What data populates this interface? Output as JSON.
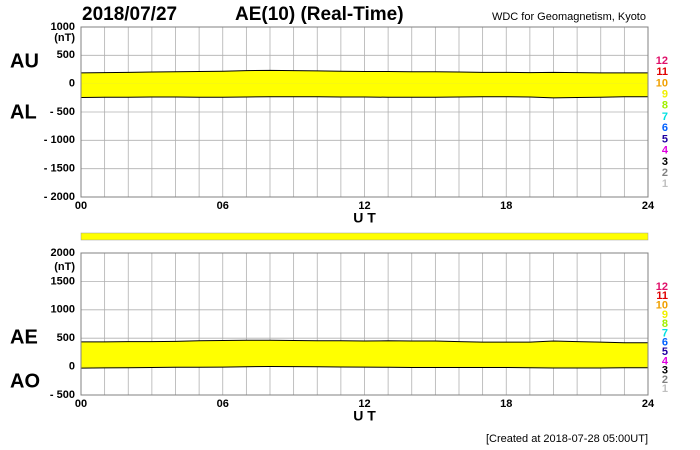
{
  "header": {
    "date": "2018/07/27",
    "title": "AE(10) (Real-Time)",
    "source": "WDC for Geomagnetism, Kyoto",
    "footer": "[Created at 2018-07-28 05:00UT]"
  },
  "chart_data": [
    {
      "type": "area",
      "unit": "(nT)",
      "xlabel": "U T",
      "x": [
        0,
        1,
        2,
        3,
        4,
        5,
        6,
        7,
        8,
        9,
        10,
        11,
        12,
        13,
        14,
        15,
        16,
        17,
        18,
        19,
        20,
        21,
        22,
        23,
        24
      ],
      "xlim": [
        0,
        24
      ],
      "xticks": [
        {
          "value": 0,
          "label": "00"
        },
        {
          "value": 6,
          "label": "06"
        },
        12,
        18,
        24
      ],
      "x_minor_ticks": [
        0,
        1,
        2,
        3,
        4,
        5,
        6,
        7,
        8,
        9,
        10,
        11,
        12,
        13,
        14,
        15,
        16,
        17,
        18,
        19,
        20,
        21,
        22,
        23,
        24
      ],
      "ylim": [
        -2000,
        1000
      ],
      "yticks": [
        {
          "value": -2000,
          "label": "- 2000"
        },
        {
          "value": -1500,
          "label": "- 1500"
        },
        {
          "value": -1000,
          "label": "- 1000"
        },
        {
          "value": -500,
          "label": "- 500"
        },
        0,
        500,
        1000
      ],
      "grid": true,
      "fill_color": "#ffff00",
      "line_color": "#000000",
      "series": [
        {
          "name": "AU",
          "values": [
            190,
            195,
            200,
            205,
            210,
            215,
            220,
            230,
            235,
            230,
            225,
            220,
            215,
            215,
            210,
            210,
            205,
            200,
            200,
            195,
            200,
            195,
            190,
            190,
            190
          ]
        },
        {
          "name": "AL",
          "values": [
            -245,
            -240,
            -240,
            -235,
            -235,
            -240,
            -240,
            -235,
            -230,
            -230,
            -230,
            -235,
            -235,
            -240,
            -240,
            -240,
            -235,
            -230,
            -230,
            -235,
            -250,
            -245,
            -240,
            -230,
            -230
          ]
        }
      ],
      "count_legend": [
        {
          "label": "12",
          "color": "#e0106a"
        },
        {
          "label": "11",
          "color": "#e00000"
        },
        {
          "label": "10",
          "color": "#f0a000"
        },
        {
          "label": "9",
          "color": "#f0f000"
        },
        {
          "label": "8",
          "color": "#a0f000"
        },
        {
          "label": "7",
          "color": "#00e0e0"
        },
        {
          "label": "6",
          "color": "#0060ff"
        },
        {
          "label": "5",
          "color": "#2000a0"
        },
        {
          "label": "4",
          "color": "#e000e0"
        },
        {
          "label": "3",
          "color": "#000000"
        },
        {
          "label": "2",
          "color": "#808080"
        },
        {
          "label": "1",
          "color": "#c0c0c0"
        }
      ]
    },
    {
      "type": "area",
      "unit": "(nT)",
      "xlabel": "U T",
      "x": [
        0,
        1,
        2,
        3,
        4,
        5,
        6,
        7,
        8,
        9,
        10,
        11,
        12,
        13,
        14,
        15,
        16,
        17,
        18,
        19,
        20,
        21,
        22,
        23,
        24
      ],
      "xlim": [
        0,
        24
      ],
      "xticks": [
        {
          "value": 0,
          "label": "00"
        },
        {
          "value": 6,
          "label": "06"
        },
        12,
        18,
        24
      ],
      "x_minor_ticks": [
        0,
        1,
        2,
        3,
        4,
        5,
        6,
        7,
        8,
        9,
        10,
        11,
        12,
        13,
        14,
        15,
        16,
        17,
        18,
        19,
        20,
        21,
        22,
        23,
        24
      ],
      "ylim": [
        -500,
        2000
      ],
      "yticks": [
        {
          "value": -500,
          "label": "- 500"
        },
        0,
        500,
        1000,
        1500,
        2000
      ],
      "grid": true,
      "fill_color": "#ffff00",
      "line_color": "#000000",
      "series": [
        {
          "name": "AE",
          "values": [
            435,
            435,
            440,
            440,
            445,
            455,
            460,
            465,
            465,
            460,
            455,
            455,
            450,
            455,
            450,
            450,
            440,
            430,
            430,
            430,
            450,
            440,
            430,
            420,
            420
          ]
        },
        {
          "name": "AO",
          "values": [
            -27.5,
            -22.5,
            -20,
            -15,
            -12.5,
            -12.5,
            -10,
            -2.5,
            2.5,
            0,
            -2.5,
            -7.5,
            -10,
            -12.5,
            -15,
            -15,
            -15,
            -15,
            -15,
            -20,
            -25,
            -25,
            -25,
            -20,
            -20
          ]
        }
      ],
      "count_legend": [
        {
          "label": "12",
          "color": "#e0106a"
        },
        {
          "label": "11",
          "color": "#e00000"
        },
        {
          "label": "10",
          "color": "#f0a000"
        },
        {
          "label": "9",
          "color": "#f0f000"
        },
        {
          "label": "8",
          "color": "#a0f000"
        },
        {
          "label": "7",
          "color": "#00e0e0"
        },
        {
          "label": "6",
          "color": "#0060ff"
        },
        {
          "label": "5",
          "color": "#2000a0"
        },
        {
          "label": "4",
          "color": "#e000e0"
        },
        {
          "label": "3",
          "color": "#000000"
        },
        {
          "label": "2",
          "color": "#808080"
        },
        {
          "label": "1",
          "color": "#c0c0c0"
        }
      ]
    }
  ]
}
